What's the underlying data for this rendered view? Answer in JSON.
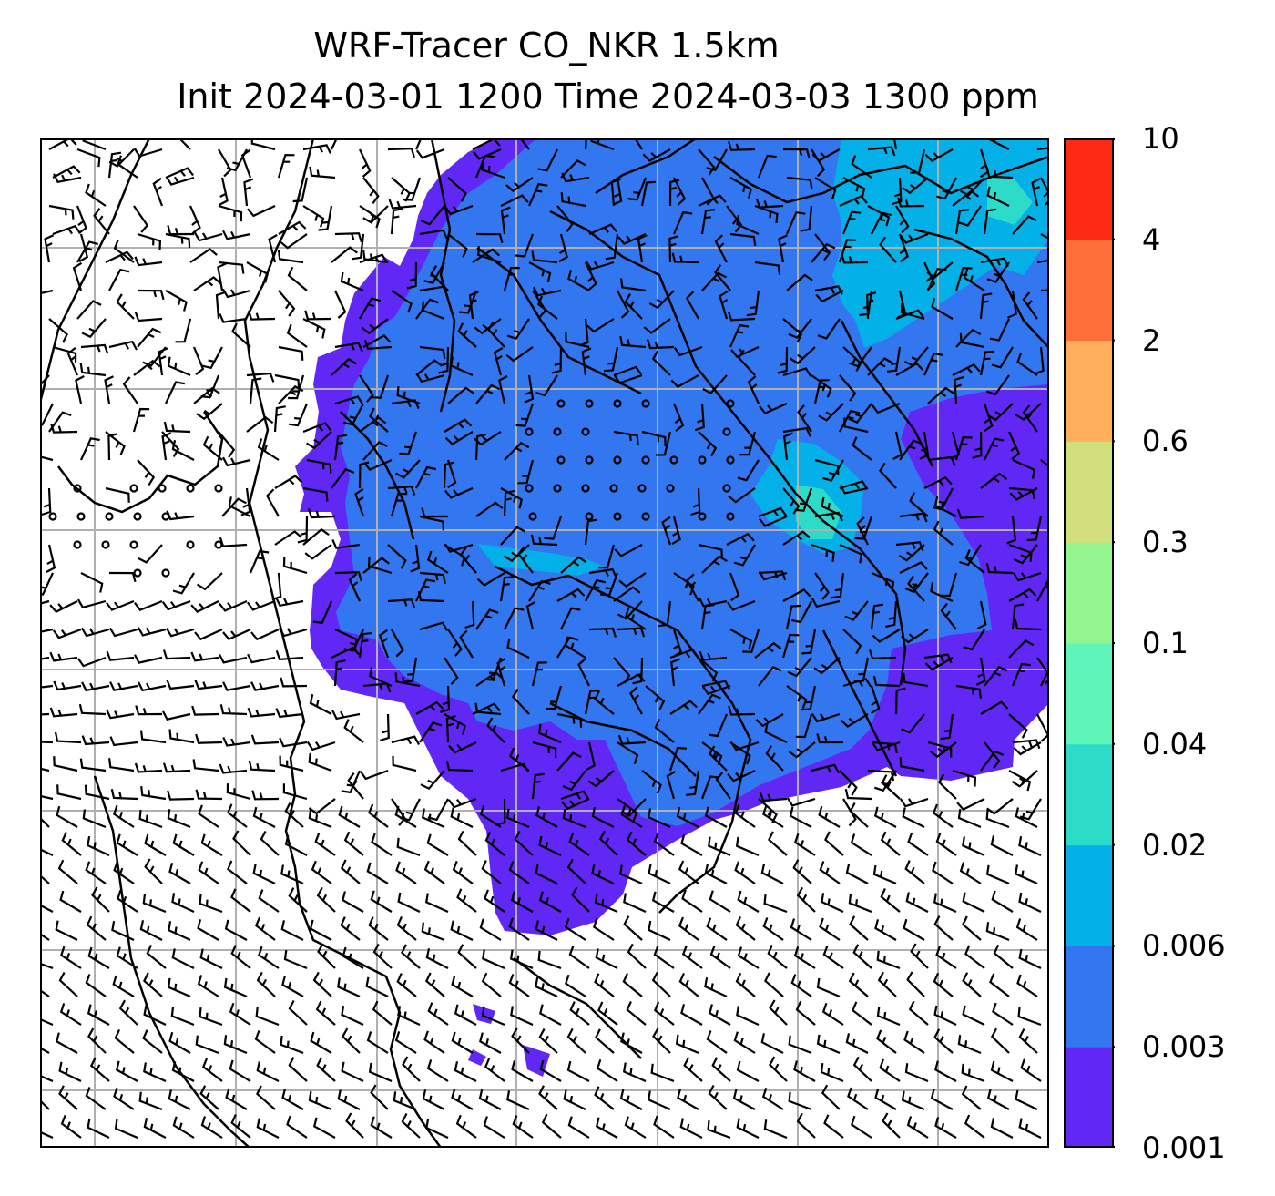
{
  "title": {
    "line1": "WRF-Tracer CO_NKR 1.5km",
    "line2": "Init 2024-03-01 1200 Time 2024-03-03 1300 ppm"
  },
  "colorbar": {
    "levels": [
      "0.001",
      "0.003",
      "0.006",
      "0.02",
      "0.04",
      "0.1",
      "0.3",
      "0.6",
      "2",
      "4",
      "10"
    ],
    "colors": [
      "#6128f5",
      "#3277ef",
      "#03b1e8",
      "#2cdbc8",
      "#5ff5b8",
      "#93f58d",
      "#d2df7d",
      "#ffaf5a",
      "#ff6e39",
      "#ff2a14"
    ]
  },
  "map": {
    "background": "#ffffff",
    "grid_color": "#b0b0b0",
    "coastline_color": "#000000",
    "barb_color": "#000000"
  }
}
